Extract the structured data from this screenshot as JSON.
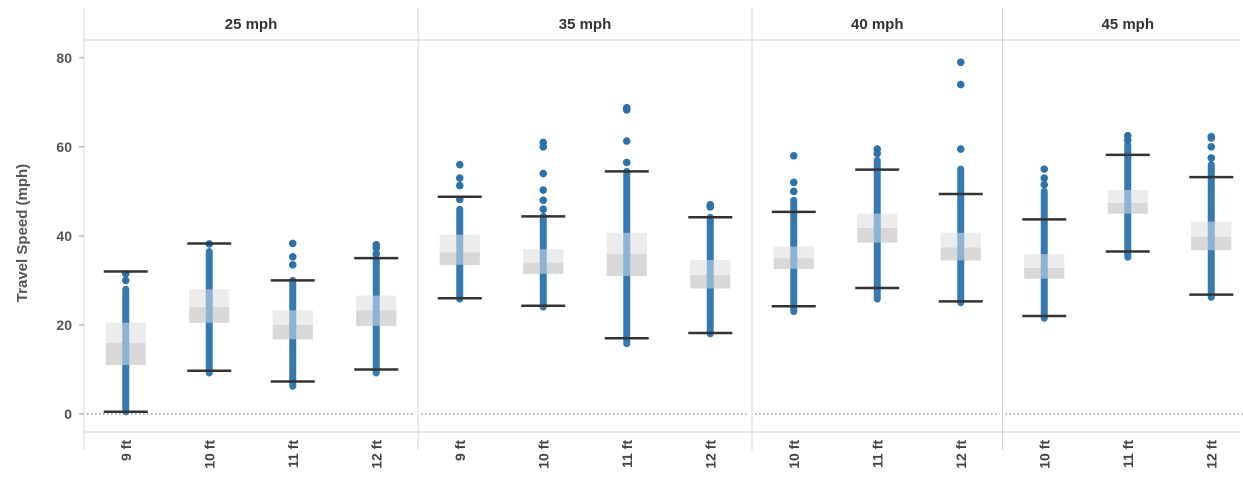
{
  "colors": {
    "point": "#2a72ad",
    "whisker": "#333333",
    "box_upper": "#dcdcdc",
    "box_lower": "#b9b9b9",
    "grid": "#d4d4d4",
    "zero_line": "#666666"
  },
  "chart_data": {
    "type": "boxplot",
    "ylabel": "Travel Speed (mph)",
    "ylim": [
      0,
      84
    ],
    "yticks": [
      0,
      20,
      40,
      60,
      80
    ],
    "panels": [
      {
        "title": "25 mph",
        "boxes": [
          {
            "category": "9 ft",
            "whisker_low": 0.5,
            "q1": 11,
            "median": 16,
            "q3": 20.5,
            "whisker_high": 32,
            "points_range": [
              0.5,
              28
            ],
            "outliers": [
              30,
              31.5
            ]
          },
          {
            "category": "10 ft",
            "whisker_low": 9.7,
            "q1": 20.5,
            "median": 24,
            "q3": 28,
            "whisker_high": 38.3,
            "points_range": [
              9.2,
              36.5
            ],
            "outliers": [
              38.2
            ]
          },
          {
            "category": "11 ft",
            "whisker_low": 7.3,
            "q1": 16.8,
            "median": 20,
            "q3": 23.3,
            "whisker_high": 30,
            "points_range": [
              6.2,
              30
            ],
            "outliers": [
              33.5,
              35.3,
              38.3
            ]
          },
          {
            "category": "12 ft",
            "whisker_low": 10,
            "q1": 19.8,
            "median": 23.3,
            "q3": 26.6,
            "whisker_high": 35,
            "points_range": [
              9.2,
              35
            ],
            "outliers": [
              36,
              37.3,
              38
            ]
          }
        ]
      },
      {
        "title": "35 mph",
        "boxes": [
          {
            "category": "9 ft",
            "whisker_low": 26,
            "q1": 33.5,
            "median": 36.3,
            "q3": 40.3,
            "whisker_high": 48.8,
            "points_range": [
              25.8,
              46
            ],
            "outliers": [
              48.2,
              51.3,
              53,
              56
            ]
          },
          {
            "category": "10 ft",
            "whisker_low": 24.3,
            "q1": 31.5,
            "median": 34,
            "q3": 37,
            "whisker_high": 44.4,
            "points_range": [
              24,
              44.4
            ],
            "outliers": [
              46,
              48,
              50.3,
              54,
              60,
              61
            ]
          },
          {
            "category": "11 ft",
            "whisker_low": 17,
            "q1": 31,
            "median": 36,
            "q3": 40.7,
            "whisker_high": 54.5,
            "points_range": [
              15.8,
              54.5
            ],
            "outliers": [
              56.5,
              61.3,
              68.3,
              68.8
            ]
          },
          {
            "category": "12 ft",
            "whisker_low": 18.2,
            "q1": 28.2,
            "median": 31.2,
            "q3": 34.6,
            "whisker_high": 44.2,
            "points_range": [
              18,
              44.2
            ],
            "outliers": [
              46.5,
              47
            ]
          }
        ]
      },
      {
        "title": "40 mph",
        "boxes": [
          {
            "category": "10 ft",
            "whisker_low": 24.2,
            "q1": 32.6,
            "median": 35,
            "q3": 37.6,
            "whisker_high": 45.4,
            "points_range": [
              23,
              48
            ],
            "outliers": [
              50,
              52,
              58
            ]
          },
          {
            "category": "11 ft",
            "whisker_low": 28.3,
            "q1": 38.5,
            "median": 41.8,
            "q3": 45,
            "whisker_high": 54.9,
            "points_range": [
              25.8,
              57
            ],
            "outliers": [
              58.5,
              59.5
            ]
          },
          {
            "category": "12 ft",
            "whisker_low": 25.3,
            "q1": 34.5,
            "median": 37.4,
            "q3": 40.7,
            "whisker_high": 49.4,
            "points_range": [
              25,
              55
            ],
            "outliers": [
              59.5,
              74,
              79
            ]
          }
        ]
      },
      {
        "title": "45 mph",
        "boxes": [
          {
            "category": "10 ft",
            "whisker_low": 22,
            "q1": 30.4,
            "median": 32.8,
            "q3": 35.9,
            "whisker_high": 43.7,
            "points_range": [
              21.5,
              50
            ],
            "outliers": [
              51.5,
              53,
              55
            ]
          },
          {
            "category": "11 ft",
            "whisker_low": 36.5,
            "q1": 45,
            "median": 47.4,
            "q3": 50.3,
            "whisker_high": 58.2,
            "points_range": [
              35.2,
              60.5
            ],
            "outliers": [
              61.5,
              62.5
            ]
          },
          {
            "category": "12 ft",
            "whisker_low": 26.8,
            "q1": 36.8,
            "median": 39.8,
            "q3": 43.2,
            "whisker_high": 53.2,
            "points_range": [
              26.2,
              56
            ],
            "outliers": [
              57.5,
              60,
              62,
              62.3
            ]
          }
        ]
      }
    ]
  }
}
